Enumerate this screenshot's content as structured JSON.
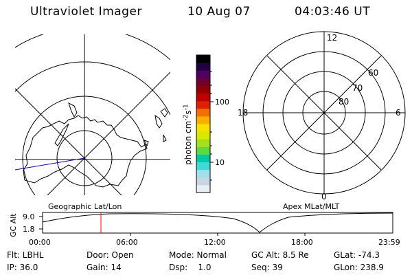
{
  "header": {
    "title": "Ultraviolet Imager",
    "date": "10 Aug 07",
    "time": "04:03:46 UT"
  },
  "colorbar": {
    "label": "photon cm",
    "label_sup1": "-2",
    "label_mid": "s",
    "label_sup2": "-1",
    "ticks": [
      "100",
      "10"
    ],
    "colors": [
      "#e8eef2",
      "#c8d8e0",
      "#a0e0e8",
      "#40d8d8",
      "#00c8a0",
      "#60d840",
      "#a8e020",
      "#d8e800",
      "#f8e000",
      "#f8b000",
      "#f07000",
      "#e02000",
      "#c00000",
      "#900000",
      "#700030",
      "#500060",
      "#200040",
      "#000000"
    ]
  },
  "left_map": {
    "caption": "Geographic Lat/Lon"
  },
  "right_dial": {
    "caption": "Apex MLat/MLT",
    "mlt_labels": {
      "top": "12",
      "left": "18",
      "right": "6",
      "bottom": "0"
    },
    "lat_labels": [
      "60",
      "70",
      "80"
    ]
  },
  "altitude_plot": {
    "ylabel": "GC Alt",
    "yticks": [
      "9.0",
      "1.8"
    ],
    "xticks": [
      "00:00",
      "06:00",
      "12:00",
      "18:00",
      "23:59"
    ],
    "marker_time": "04:03:46"
  },
  "info": {
    "row1": {
      "flt": "Flt: LBHL",
      "door": "Door: Open",
      "mode": "Mode: Normal",
      "gcalt": "GC Alt: 8.5 Re",
      "glat": "GLat: -74.3"
    },
    "row2": {
      "ip": "IP: 36.0",
      "gain": "Gain: 14",
      "dsp": "Dsp:    1.0",
      "seq": "Seq: 39",
      "glon": "GLon: 238.9"
    }
  },
  "colors": {
    "line": "#000000",
    "marker": "#ff0000",
    "meridian": "#0000ff"
  }
}
